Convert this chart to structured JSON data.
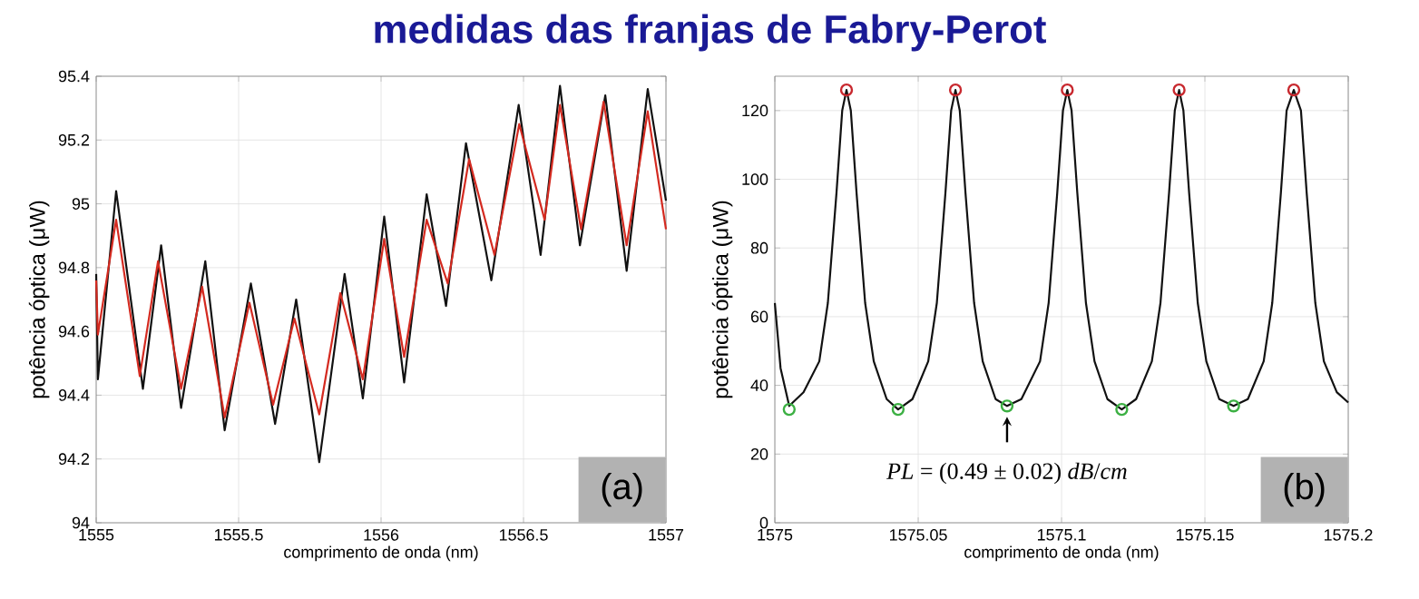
{
  "chart_data": [
    {
      "type": "line",
      "title": "medidas das franjas de Fabry-Perot",
      "xlabel": "comprimento de onda (nm)",
      "ylabel": "potência óptica (μW)",
      "xlim": [
        1555,
        1557
      ],
      "ylim": [
        94,
        95.4
      ],
      "xticks": [
        1555,
        1555.5,
        1556,
        1556.5,
        1557
      ],
      "yticks": [
        94,
        94.2,
        94.4,
        94.6,
        94.8,
        95,
        95.2,
        95.4
      ],
      "grid": true,
      "marker": "none",
      "line_style": "solid",
      "annotations": [
        "(a)"
      ],
      "series": [
        {
          "color": "#111111",
          "x": [
            1555.0,
            1555.006,
            1555.07,
            1555.164,
            1555.228,
            1555.298,
            1555.383,
            1555.451,
            1555.543,
            1555.628,
            1555.702,
            1555.783,
            1555.872,
            1555.936,
            1556.011,
            1556.081,
            1556.16,
            1556.228,
            1556.298,
            1556.387,
            1556.483,
            1556.56,
            1556.628,
            1556.698,
            1556.787,
            1556.862,
            1556.936,
            1557.0
          ],
          "values": [
            94.78,
            94.45,
            95.04,
            94.42,
            94.87,
            94.36,
            94.82,
            94.29,
            94.75,
            94.31,
            94.7,
            94.19,
            94.78,
            94.39,
            94.96,
            94.44,
            95.03,
            94.68,
            95.19,
            94.76,
            95.31,
            94.84,
            95.37,
            94.87,
            95.34,
            94.79,
            95.36,
            95.01
          ]
        },
        {
          "color": "#d42a20",
          "x": [
            1555.0,
            1555.006,
            1555.07,
            1555.153,
            1555.217,
            1555.298,
            1555.372,
            1555.451,
            1555.538,
            1555.621,
            1555.696,
            1555.783,
            1555.857,
            1555.936,
            1556.011,
            1556.081,
            1556.16,
            1556.234,
            1556.309,
            1556.398,
            1556.485,
            1556.574,
            1556.628,
            1556.702,
            1556.781,
            1556.862,
            1556.936,
            1557.0
          ],
          "values": [
            94.76,
            94.59,
            94.95,
            94.46,
            94.82,
            94.42,
            94.74,
            94.33,
            94.69,
            94.37,
            94.64,
            94.34,
            94.72,
            94.45,
            94.89,
            94.52,
            94.95,
            94.75,
            95.14,
            94.84,
            95.25,
            94.95,
            95.31,
            94.92,
            95.32,
            94.87,
            95.29,
            94.92
          ]
        }
      ]
    },
    {
      "type": "line",
      "xlabel": "comprimento de onda (nm)",
      "ylabel": "potência óptica (μW)",
      "xlim": [
        1575,
        1575.2
      ],
      "ylim": [
        0,
        130
      ],
      "xticks": [
        1575,
        1575.05,
        1575.1,
        1575.15,
        1575.2
      ],
      "yticks": [
        0,
        20,
        40,
        60,
        80,
        100,
        120
      ],
      "grid": true,
      "annotations": [
        {
          "text": "*PL* = (0.49 ± 0.02) *dB*/*cm*",
          "x": 1575.081,
          "y": 34
        },
        "(b)"
      ],
      "series": [
        {
          "color": "#111111",
          "marker": "none",
          "line_style": "solid",
          "x": [
            1575.0,
            1575.002,
            1575.005,
            1575.01,
            1575.0155,
            1575.0185,
            1575.0215,
            1575.0235,
            1575.025,
            1575.0265,
            1575.0285,
            1575.0315,
            1575.0345,
            1575.039,
            1575.043,
            1575.048,
            1575.0535,
            1575.0565,
            1575.0595,
            1575.0615,
            1575.063,
            1575.0645,
            1575.0665,
            1575.0695,
            1575.0725,
            1575.077,
            1575.081,
            1575.086,
            1575.0925,
            1575.0955,
            1575.0985,
            1575.1005,
            1575.102,
            1575.1035,
            1575.1055,
            1575.1085,
            1575.1115,
            1575.116,
            1575.121,
            1575.126,
            1575.1315,
            1575.1345,
            1575.1375,
            1575.1395,
            1575.141,
            1575.1425,
            1575.1445,
            1575.1475,
            1575.1505,
            1575.155,
            1575.16,
            1575.165,
            1575.1705,
            1575.1735,
            1575.1765,
            1575.1785,
            1575.181,
            1575.1835,
            1575.1855,
            1575.1885,
            1575.1915,
            1575.196,
            1575.2
          ],
          "values": [
            64,
            45,
            34,
            38,
            47,
            64,
            96,
            120,
            126,
            120,
            96,
            64,
            47,
            36,
            33,
            36,
            47,
            64,
            96,
            120,
            126,
            120,
            96,
            64,
            47,
            36,
            34,
            36,
            47,
            64,
            96,
            120,
            126,
            120,
            96,
            64,
            47,
            36,
            33,
            36,
            47,
            64,
            96,
            120,
            126,
            120,
            96,
            64,
            47,
            36,
            34,
            36,
            47,
            64,
            96,
            120,
            126,
            120,
            96,
            64,
            47,
            38,
            35
          ]
        },
        {
          "type": "scatter",
          "color": "#c8282e",
          "marker": "circle",
          "x": [
            1575.025,
            1575.063,
            1575.102,
            1575.141,
            1575.181
          ],
          "values": [
            126,
            126,
            126,
            126,
            126
          ]
        },
        {
          "type": "scatter",
          "color": "#3cb043",
          "marker": "circle",
          "x": [
            1575.005,
            1575.043,
            1575.081,
            1575.121,
            1575.16
          ],
          "values": [
            33,
            33,
            34,
            33,
            34
          ]
        }
      ]
    }
  ]
}
